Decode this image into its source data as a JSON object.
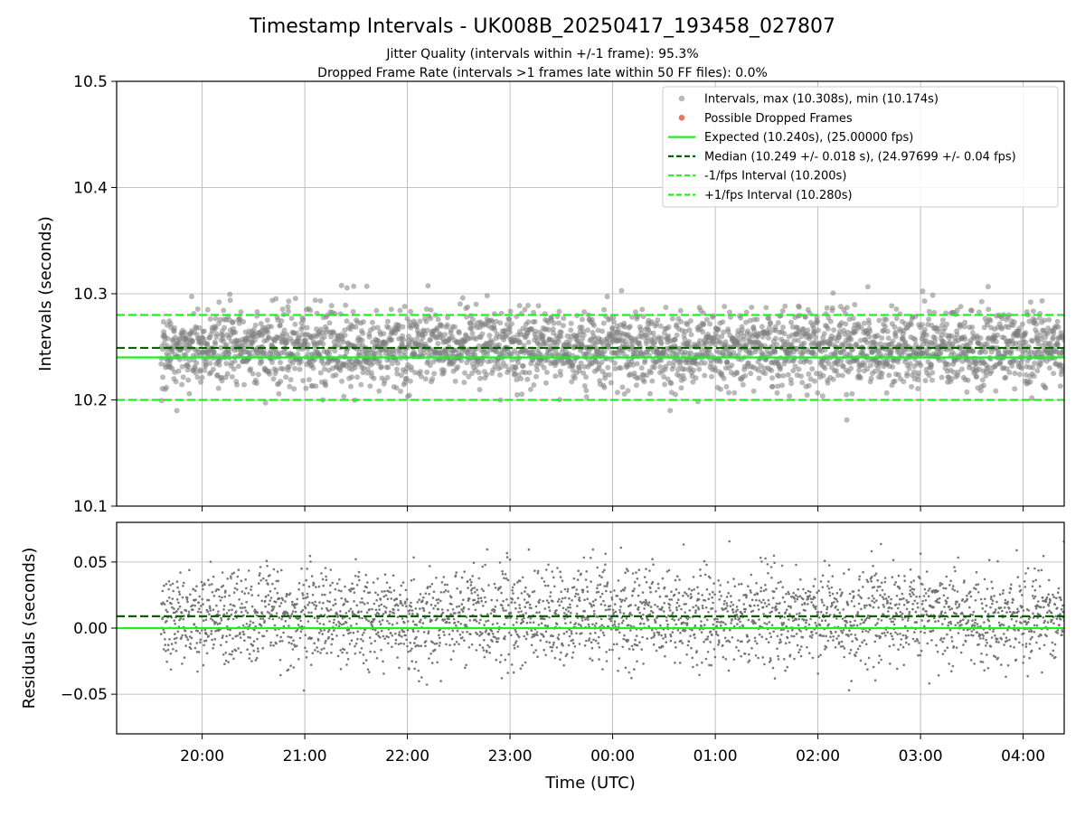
{
  "chart_data": [
    {
      "type": "scatter",
      "panel": "intervals",
      "title": "Timestamp Intervals - UK008B_20250417_193458_027807",
      "subtitle_lines": [
        "Jitter Quality (intervals within +/-1 frame): 95.3%",
        "Dropped Frame Rate (intervals >1 frames late within 50 FF files): 0.0%"
      ],
      "ylabel": "Intervals (seconds)",
      "ylim": [
        10.1,
        10.5
      ],
      "yticks": [
        "10.1",
        "10.2",
        "10.3",
        "10.4",
        "10.5"
      ],
      "xlim": [
        "19:10",
        "04:24"
      ],
      "xticks": [
        "20:00",
        "21:00",
        "22:00",
        "23:00",
        "00:00",
        "01:00",
        "02:00",
        "03:00",
        "04:00"
      ],
      "grid": true,
      "legend_placement": "top-right",
      "series": [
        {
          "name": "Intervals, max (10.308s), min (10.174s)",
          "kind": "points",
          "color": "#808080",
          "time_range": [
            "19:36",
            "04:24"
          ],
          "approx_count": 3100,
          "center": 10.249,
          "spread_sd": 0.018,
          "max": 10.308,
          "min": 10.174
        },
        {
          "name": "Possible Dropped Frames",
          "kind": "points",
          "color": "#f06060",
          "values": []
        },
        {
          "name": "Expected (10.240s), (25.00000 fps)",
          "kind": "hline",
          "y": 10.24,
          "color": "#22ee22",
          "style": "solid"
        },
        {
          "name": "Median (10.249 +/- 0.018 s), (24.97699 +/- 0.04 fps)",
          "kind": "hline",
          "y": 10.249,
          "color": "#006400",
          "style": "dashed"
        },
        {
          "name": "-1/fps Interval (10.200s)",
          "kind": "hline",
          "y": 10.2,
          "color": "#22ee22",
          "style": "dashed"
        },
        {
          "name": "+1/fps Interval (10.280s)",
          "kind": "hline",
          "y": 10.28,
          "color": "#22ee22",
          "style": "dashed"
        }
      ]
    },
    {
      "type": "scatter",
      "panel": "residuals",
      "xlabel": "Time (UTC)",
      "ylabel": "Residuals (seconds)",
      "ylim": [
        -0.08,
        0.08
      ],
      "yticks": [
        "−0.05",
        "0.00",
        "0.05"
      ],
      "ytick_values": [
        -0.05,
        0.0,
        0.05
      ],
      "xlim": [
        "19:10",
        "04:24"
      ],
      "xticks": [
        "20:00",
        "21:00",
        "22:00",
        "23:00",
        "00:00",
        "01:00",
        "02:00",
        "03:00",
        "04:00"
      ],
      "grid": true,
      "series": [
        {
          "kind": "points",
          "color": "#707070",
          "time_range": [
            "19:36",
            "04:24"
          ],
          "approx_count": 3100,
          "center": 0.009,
          "spread_sd": 0.018,
          "max": 0.068,
          "min": -0.066
        },
        {
          "kind": "hline",
          "y": 0.0,
          "color": "#22ee22",
          "style": "solid"
        },
        {
          "kind": "hline",
          "y": 0.009,
          "color": "#006400",
          "style": "dashed"
        }
      ]
    }
  ]
}
